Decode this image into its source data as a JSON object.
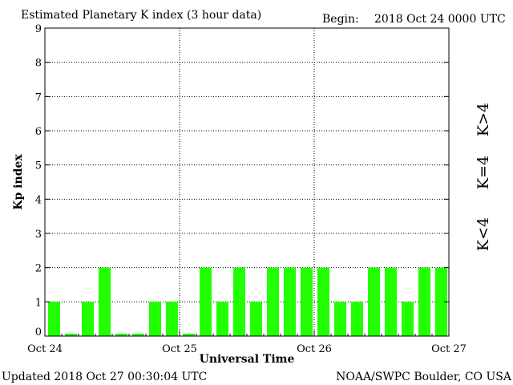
{
  "colors": {
    "bar": "#22ff00",
    "legend_low": "#22ff00",
    "legend_mid": "#ffcc00",
    "legend_high": "#ff3300"
  },
  "header": {
    "title": "Estimated Planetary K index (3 hour data)",
    "begin_label": "Begin:",
    "begin_value": "2018 Oct 24 0000 UTC"
  },
  "footer": {
    "updated": "Updated 2018 Oct 27 00:30:04 UTC",
    "source": "NOAA/SWPC Boulder, CO USA"
  },
  "legend": {
    "low": "K<4",
    "mid": "K=4",
    "high": "K>4"
  },
  "chart_data": {
    "type": "bar",
    "title": "Estimated Planetary K index (3 hour data)",
    "xlabel": "Universal Time",
    "ylabel": "Kp index",
    "ylim": [
      0,
      9
    ],
    "yticks": [
      0,
      1,
      2,
      3,
      4,
      5,
      6,
      7,
      8,
      9
    ],
    "xticks": [
      "Oct 24",
      "Oct 25",
      "Oct 26",
      "Oct 27"
    ],
    "bars_per_day": 8,
    "grid": true,
    "values": [
      1,
      0,
      1,
      2,
      0,
      0,
      1,
      1,
      0,
      2,
      1,
      2,
      1,
      2,
      2,
      2,
      2,
      1,
      1,
      2,
      2,
      1,
      2,
      2
    ]
  }
}
